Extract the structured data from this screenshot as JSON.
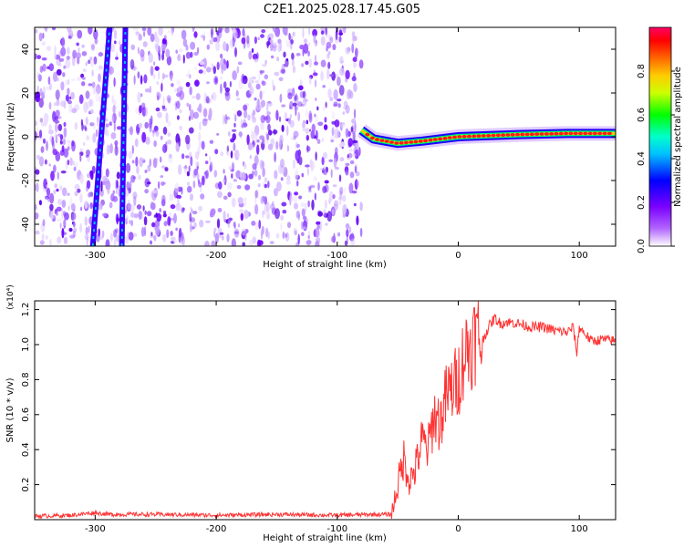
{
  "title": "C2E1.2025.028.17.45.G05",
  "colors": {
    "snr_line": "#ff3333",
    "axis": "#000000",
    "colormap": [
      "#ffffff",
      "#7b00ff",
      "#0000ff",
      "#00ffff",
      "#00ff00",
      "#ffff00",
      "#ff7f00",
      "#ff0000",
      "#ff0066"
    ]
  },
  "chart_data": [
    {
      "type": "heatmap",
      "xlabel": "Height of straight line (km)",
      "ylabel": "Frequency (Hz)",
      "xlim": [
        -350,
        130
      ],
      "ylim": [
        -50,
        50
      ],
      "xticks": [
        -300,
        -200,
        -100,
        0,
        100
      ],
      "yticks": [
        -40,
        -20,
        0,
        20,
        40
      ],
      "colorbar": {
        "label": "Normalized spectral amplitude",
        "range": [
          0,
          1
        ],
        "ticks": [
          0.0,
          0.2,
          0.4,
          0.6,
          0.8
        ]
      },
      "noise_region": {
        "x": [
          -350,
          -80
        ],
        "freq": [
          -50,
          50
        ],
        "amplitude": 0.15
      },
      "diagonal_traces": [
        {
          "x0": -302,
          "x1": -288,
          "freq0": -50,
          "freq1": 50
        },
        {
          "x0": -278,
          "x1": -275,
          "freq0": -50,
          "freq1": 50
        }
      ],
      "carrier_track": [
        {
          "x": -80,
          "freq": 3
        },
        {
          "x": -70,
          "freq": -1
        },
        {
          "x": -50,
          "freq": -3
        },
        {
          "x": -30,
          "freq": -2
        },
        {
          "x": 0,
          "freq": 0
        },
        {
          "x": 50,
          "freq": 1
        },
        {
          "x": 90,
          "freq": 1.5
        },
        {
          "x": 130,
          "freq": 1.5
        }
      ]
    },
    {
      "type": "line",
      "xlabel": "Height of straight line (km)",
      "ylabel": "SNR (10 * v/v)",
      "y_multiplier_label": "(x10⁴)",
      "xlim": [
        -350,
        130
      ],
      "ylim": [
        0,
        1.25
      ],
      "xticks": [
        -300,
        -200,
        -100,
        0,
        100
      ],
      "yticks": [
        0.2,
        0.4,
        0.6,
        0.8,
        1.0,
        1.2
      ],
      "series": [
        {
          "x": [
            -350,
            -320,
            -300,
            -290,
            -250,
            -200,
            -150,
            -100,
            -70,
            -55,
            -50,
            -45,
            -40,
            -35,
            -30,
            -25,
            -20,
            -15,
            -10,
            -5,
            0,
            5,
            10,
            15,
            20,
            25,
            30,
            35,
            40,
            50,
            60,
            70,
            80,
            90,
            95,
            98,
            100,
            110,
            120,
            130
          ],
          "y": [
            0.02,
            0.025,
            0.04,
            0.03,
            0.03,
            0.025,
            0.03,
            0.025,
            0.03,
            0.03,
            0.2,
            0.35,
            0.22,
            0.3,
            0.45,
            0.4,
            0.6,
            0.55,
            0.7,
            0.75,
            0.8,
            0.95,
            1.0,
            1.05,
            1.02,
            1.1,
            1.15,
            1.12,
            1.13,
            1.12,
            1.1,
            1.1,
            1.08,
            1.07,
            1.1,
            0.95,
            1.1,
            1.02,
            1.03,
            1.02
          ]
        }
      ]
    }
  ]
}
